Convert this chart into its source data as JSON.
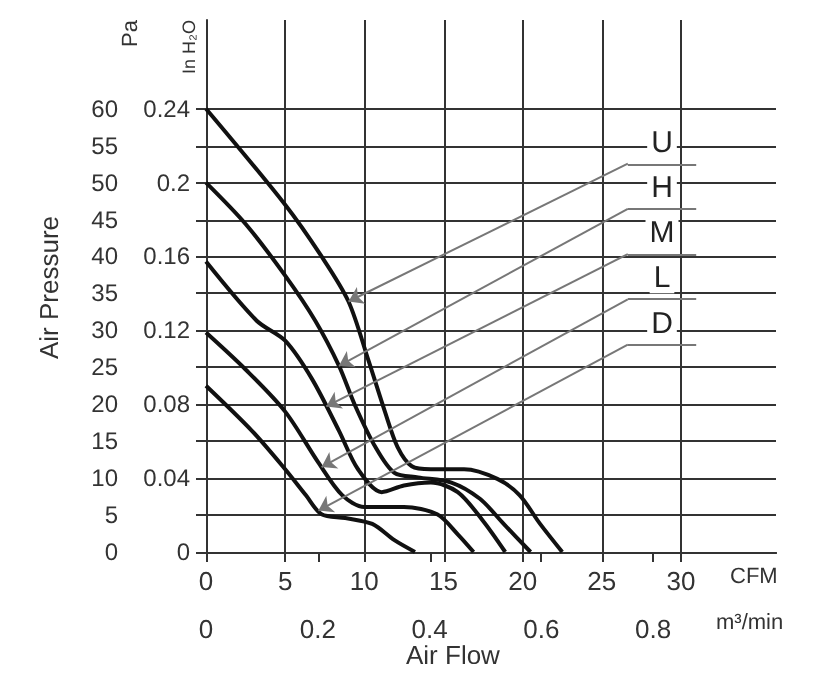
{
  "chart_data": {
    "type": "line",
    "xlabel": "CFM",
    "x2label": "m³/min",
    "ylabel": "Pa",
    "y2label": "In H₂O",
    "xlim": [
      0,
      36
    ],
    "xticks": [
      0,
      5,
      10,
      15,
      20,
      25,
      30
    ],
    "x2lim": [
      0,
      1.02
    ],
    "x2ticks": [
      0,
      0.2,
      0.4,
      0.6,
      0.8
    ],
    "ylim": [
      0,
      72
    ],
    "yticks": [
      0,
      5,
      10,
      15,
      20,
      25,
      30,
      35,
      40,
      45,
      50,
      55,
      60
    ],
    "y2lim": [
      0,
      0.288
    ],
    "y2ticks": [
      0,
      0.04,
      0.08,
      0.12,
      0.16,
      0.2,
      0.24
    ],
    "grid": true,
    "marker": "none",
    "line_style": "solid",
    "series": [
      {
        "color": "#111111",
        "x": [
          0,
          5,
          7.3,
          9,
          10.25,
          11.3,
          12.1,
          13,
          14.2,
          16.3,
          18.4,
          19.8,
          21.1,
          22.5
        ],
        "values": [
          60,
          47,
          40,
          33.9,
          26,
          19,
          14.2,
          11.6,
          11.2,
          11.2,
          9.9,
          7.7,
          3.8,
          0
        ]
      },
      {
        "color": "#111111",
        "x": [
          0,
          2.5,
          5,
          6.9,
          8.4,
          9.4,
          10.7,
          11.9,
          13.4,
          15.5,
          17.3,
          18.8,
          20.5
        ],
        "values": [
          50,
          44.4,
          37.4,
          31.3,
          25.2,
          19.9,
          14.2,
          10.7,
          10.1,
          9.4,
          7.2,
          3.8,
          0
        ]
      },
      {
        "color": "#111111",
        "x": [
          0,
          3.2,
          5,
          6.7,
          8.4,
          9.6,
          11.1,
          12.5,
          14.2,
          15.9,
          17.5,
          18.9
        ],
        "values": [
          39.3,
          31.3,
          28.6,
          23.4,
          16.4,
          11.2,
          8.1,
          9,
          9.4,
          8.1,
          4.2,
          0
        ]
      },
      {
        "color": "#111111",
        "x": [
          0,
          2.5,
          5,
          7.1,
          8.6,
          10,
          12.5,
          14.6,
          15.9,
          16.9
        ],
        "values": [
          29.7,
          24.7,
          19,
          12.1,
          7.7,
          6.1,
          6.1,
          5.1,
          2.4,
          0
        ]
      },
      {
        "color": "#111111",
        "x": [
          0,
          2.9,
          5,
          6.3,
          7.3,
          8.8,
          10.5,
          11.9,
          13.2
        ],
        "values": [
          22.5,
          16.4,
          11.2,
          7.7,
          5.1,
          4.6,
          3.8,
          1.6,
          0
        ]
      }
    ],
    "annotations": [
      {
        "text": "U",
        "x": 9,
        "y": 33.9
      },
      {
        "text": "H",
        "x": 8.4,
        "y": 25.2
      },
      {
        "text": "M",
        "x": 7.6,
        "y": 19.7
      },
      {
        "text": "L",
        "x": 7.3,
        "y": 11.5
      },
      {
        "text": "D",
        "x": 7.1,
        "y": 5.6
      },
      "Air Pressure",
      "Air Flow"
    ]
  }
}
